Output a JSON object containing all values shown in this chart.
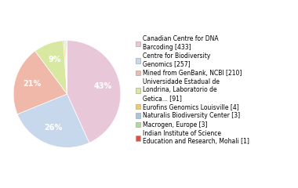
{
  "legend_labels": [
    "Canadian Centre for DNA\nBarcoding [433]",
    "Centre for Biodiversity\nGenomics [257]",
    "Mined from GenBank, NCBI [210]",
    "Universidade Estadual de\nLondrina, Laboratorio de\nGetica... [91]",
    "Eurofins Genomics Louisville [4]",
    "Naturalis Biodiversity Center [3]",
    "Macrogen, Europe [3]",
    "Indian Institute of Science\nEducation and Research, Mohali [1]"
  ],
  "values": [
    433,
    257,
    210,
    91,
    4,
    3,
    3,
    1
  ],
  "colors": [
    "#e8c8d8",
    "#c8d8ec",
    "#f0b8a8",
    "#d8e8a0",
    "#f0c870",
    "#a8c4e0",
    "#b0d898",
    "#e05040"
  ],
  "autopct_threshold": 5,
  "startangle": 90,
  "background_color": "#ffffff",
  "pct_color": "white",
  "pct_fontsize": 7,
  "legend_fontsize": 5.5
}
